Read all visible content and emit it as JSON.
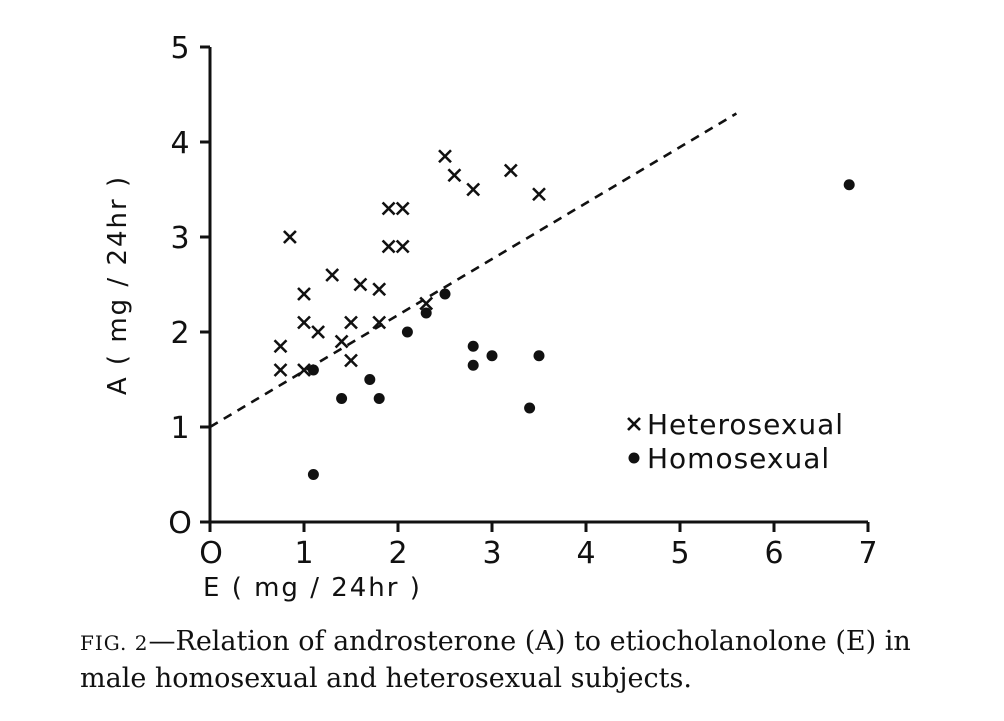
{
  "chart_data": {
    "type": "scatter",
    "title": "",
    "xlabel": "E ( mg / 24hr )",
    "ylabel": "A ( mg / 24hr )",
    "xlim": [
      0,
      7
    ],
    "ylim": [
      0,
      5
    ],
    "xticks": [
      "O",
      "1",
      "2",
      "3",
      "4",
      "5",
      "6",
      "7"
    ],
    "yticks": [
      "O",
      "1",
      "2",
      "3",
      "4",
      "5"
    ],
    "grid": false,
    "legend_position": "right",
    "series": [
      {
        "name": "Heterosexual",
        "marker": "x",
        "points": [
          [
            0.85,
            3.0
          ],
          [
            1.0,
            2.4
          ],
          [
            1.0,
            2.1
          ],
          [
            1.15,
            2.0
          ],
          [
            1.3,
            2.6
          ],
          [
            0.75,
            1.85
          ],
          [
            0.75,
            1.6
          ],
          [
            1.0,
            1.6
          ],
          [
            1.4,
            1.9
          ],
          [
            1.5,
            2.1
          ],
          [
            1.5,
            1.7
          ],
          [
            1.6,
            2.5
          ],
          [
            1.8,
            2.45
          ],
          [
            1.8,
            2.1
          ],
          [
            1.9,
            3.3
          ],
          [
            2.05,
            3.3
          ],
          [
            1.9,
            2.9
          ],
          [
            2.05,
            2.9
          ],
          [
            2.3,
            2.3
          ],
          [
            2.5,
            3.85
          ],
          [
            2.6,
            3.65
          ],
          [
            2.8,
            3.5
          ],
          [
            3.2,
            3.7
          ],
          [
            3.5,
            3.45
          ]
        ]
      },
      {
        "name": "Homosexual",
        "marker": "dot",
        "points": [
          [
            1.1,
            1.6
          ],
          [
            1.1,
            0.5
          ],
          [
            1.4,
            1.3
          ],
          [
            1.7,
            1.5
          ],
          [
            1.8,
            1.3
          ],
          [
            2.1,
            2.0
          ],
          [
            2.3,
            2.2
          ],
          [
            2.5,
            2.4
          ],
          [
            2.8,
            1.85
          ],
          [
            2.8,
            1.65
          ],
          [
            3.0,
            1.75
          ],
          [
            3.4,
            1.2
          ],
          [
            3.5,
            1.75
          ],
          [
            6.8,
            3.55
          ]
        ]
      }
    ],
    "trend_line": {
      "style": "dashed",
      "from": [
        0,
        1.0
      ],
      "to": [
        5.6,
        4.3
      ]
    }
  },
  "legend": {
    "heterosexual": "Heterosexual",
    "homosexual": "Homosexual"
  },
  "caption": {
    "fig_prefix": "FIG. 2",
    "text": "—Relation of androsterone (A) to etiocholanolone (E) in male homosexual and heterosexual subjects."
  }
}
